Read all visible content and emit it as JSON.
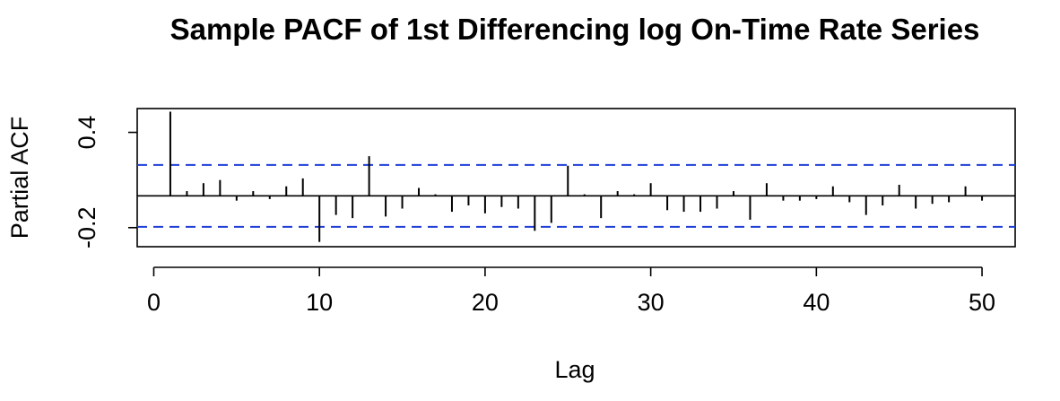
{
  "chart_data": {
    "type": "bar",
    "title": "Sample PACF of 1st Differencing log On-Time Rate Series",
    "xlabel": "Lag",
    "ylabel": "Partial ACF",
    "xlim": [
      -1,
      52
    ],
    "ylim": [
      -0.32,
      0.55
    ],
    "x_ticks": [
      0,
      10,
      20,
      30,
      40,
      50
    ],
    "x_tick_labels": [
      "0",
      "10",
      "20",
      "30",
      "40",
      "50"
    ],
    "y_ticks": [
      -0.2,
      0.4
    ],
    "y_tick_labels": [
      "-0.2",
      "0.4"
    ],
    "confidence_bound": 0.195,
    "colors": {
      "confidence_line": "#1f3fd6",
      "spike": "#000000",
      "axis": "#000000"
    },
    "series": [
      {
        "x": [
          1,
          2,
          3,
          4,
          5,
          6,
          7,
          8,
          9,
          10,
          11,
          12,
          13,
          14,
          15,
          16,
          17,
          18,
          19,
          20,
          21,
          22,
          23,
          24,
          25,
          26,
          27,
          28,
          29,
          30,
          31,
          32,
          33,
          34,
          35,
          36,
          37,
          38,
          39,
          40,
          41,
          42,
          43,
          44,
          45,
          46,
          47,
          48,
          49,
          50
        ],
        "values": [
          0.53,
          0.03,
          0.08,
          0.1,
          -0.03,
          0.03,
          -0.02,
          0.06,
          0.11,
          -0.29,
          -0.12,
          -0.14,
          0.25,
          -0.13,
          -0.08,
          0.05,
          0.01,
          -0.1,
          -0.06,
          -0.11,
          -0.07,
          -0.08,
          -0.22,
          -0.17,
          0.19,
          0.01,
          -0.14,
          0.03,
          0.01,
          0.08,
          -0.09,
          -0.1,
          -0.1,
          -0.08,
          0.03,
          -0.15,
          0.08,
          -0.03,
          -0.03,
          -0.02,
          0.06,
          -0.04,
          -0.12,
          -0.06,
          0.07,
          -0.08,
          -0.05,
          -0.04,
          0.06,
          -0.03
        ]
      }
    ]
  }
}
